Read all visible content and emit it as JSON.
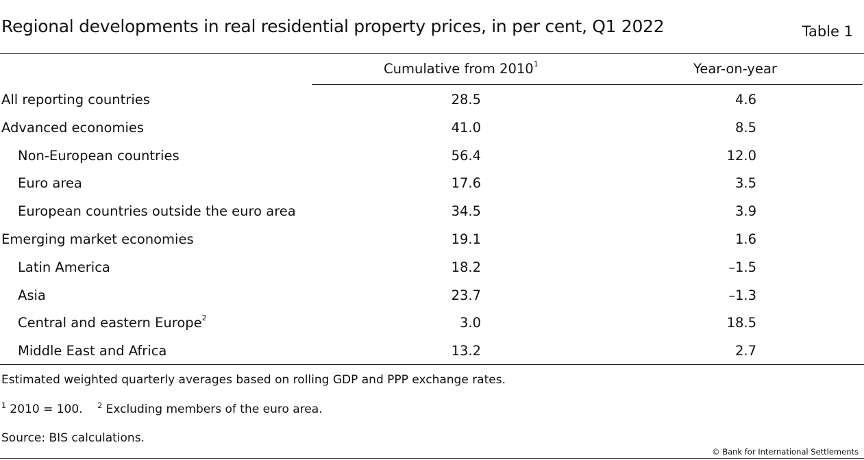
{
  "title": "Regional developments in real residential property prices, in per cent, Q1 2022",
  "table_number": "Table 1",
  "columns": {
    "cumulative": "Cumulative from 2010",
    "cumulative_note": "1",
    "yoy": "Year-on-year"
  },
  "rows": [
    {
      "label": "All reporting countries",
      "note": "",
      "cumulative": "28.5",
      "yoy": "4.6",
      "indent": 0
    },
    {
      "label": "Advanced economies",
      "note": "",
      "cumulative": "41.0",
      "yoy": "8.5",
      "indent": 0
    },
    {
      "label": "Non-European countries",
      "note": "",
      "cumulative": "56.4",
      "yoy": "12.0",
      "indent": 1
    },
    {
      "label": "Euro area",
      "note": "",
      "cumulative": "17.6",
      "yoy": "3.5",
      "indent": 1
    },
    {
      "label": "European countries outside the euro area",
      "note": "",
      "cumulative": "34.5",
      "yoy": "3.9",
      "indent": 1
    },
    {
      "label": "Emerging market economies",
      "note": "",
      "cumulative": "19.1",
      "yoy": "1.6",
      "indent": 0
    },
    {
      "label": "Latin America",
      "note": "",
      "cumulative": "18.2",
      "yoy": "–1.5",
      "indent": 1
    },
    {
      "label": "Asia",
      "note": "",
      "cumulative": "23.7",
      "yoy": "–1.3",
      "indent": 1
    },
    {
      "label": "Central and eastern Europe",
      "note": "2",
      "cumulative": "3.0",
      "yoy": "18.5",
      "indent": 1
    },
    {
      "label": "Middle East and Africa",
      "note": "",
      "cumulative": "13.2",
      "yoy": "2.7",
      "indent": 1
    }
  ],
  "footnotes": {
    "general": "Estimated weighted quarterly averages based on rolling GDP and PPP exchange rates.",
    "note1_mark": "1",
    "note1_text": "2010 = 100.",
    "note2_mark": "2",
    "note2_text": "Excluding members of the euro area.",
    "source": "Source: BIS calculations."
  },
  "copyright": "© Bank for International Settlements"
}
